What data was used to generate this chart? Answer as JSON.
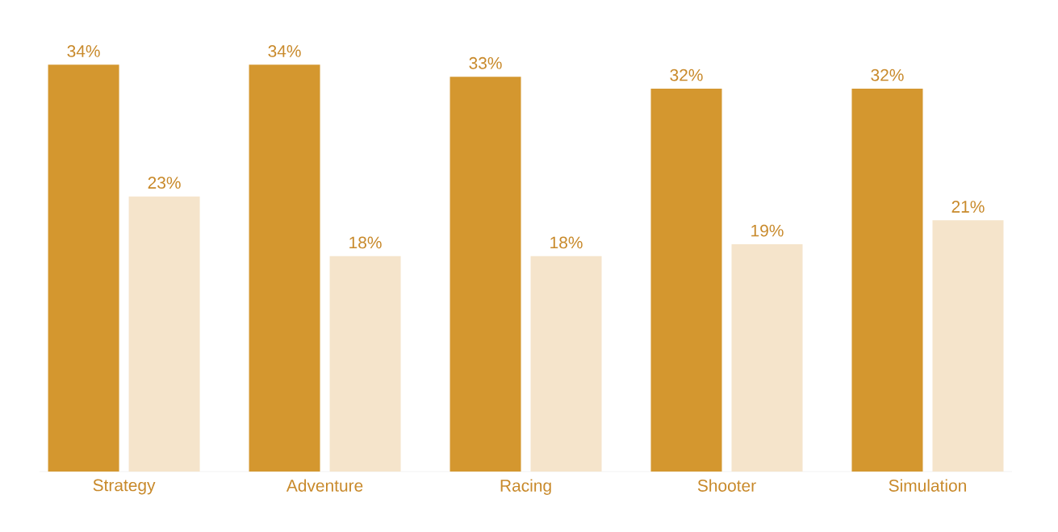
{
  "chart_data": {
    "type": "bar",
    "categories": [
      "Strategy",
      "Adventure",
      "Racing",
      "Shooter",
      "Simulation"
    ],
    "series": [
      {
        "color": "#d4972f",
        "values": [
          34,
          34,
          33,
          32,
          32
        ],
        "value_labels": [
          "34%",
          "34%",
          "33%",
          "32%",
          "32%"
        ]
      },
      {
        "color": "#f5e4cb",
        "values": [
          23,
          18,
          18,
          19,
          21
        ],
        "value_labels": [
          "23%",
          "18%",
          "18%",
          "19%",
          "21%"
        ]
      }
    ]
  }
}
